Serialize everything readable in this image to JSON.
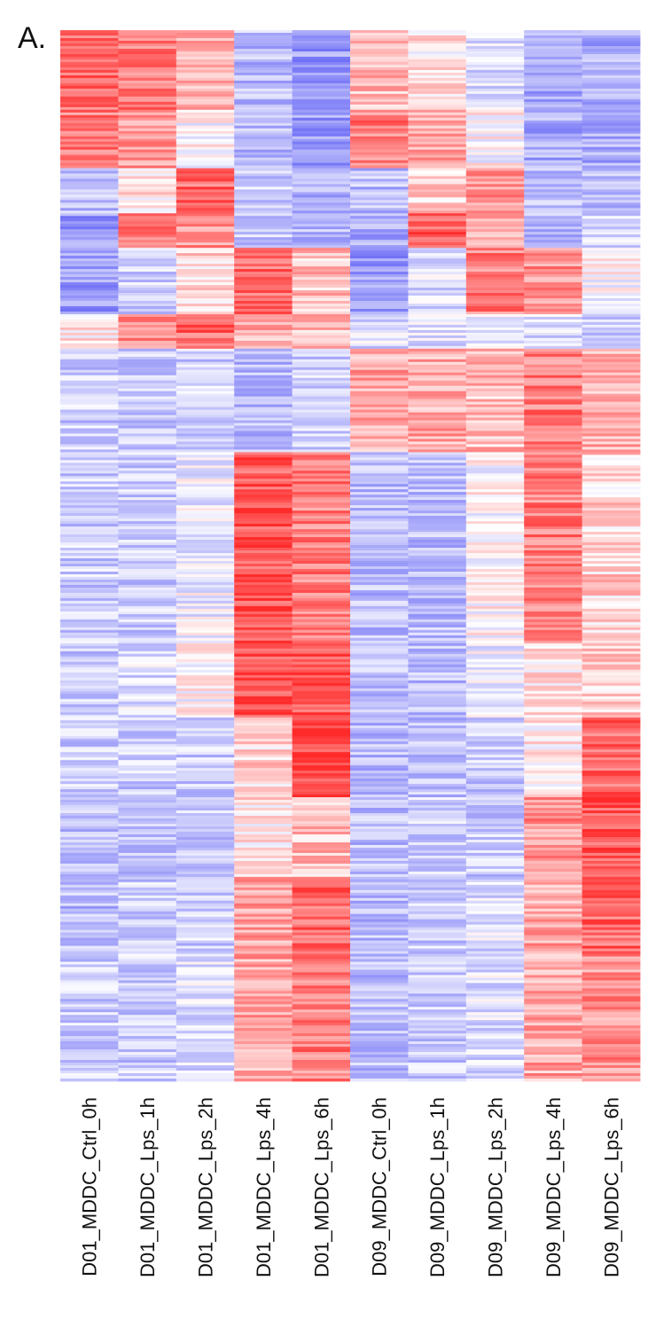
{
  "panel_label": "A.",
  "chart_data": {
    "type": "heatmap",
    "title": "",
    "xlabel": "",
    "ylabel": "",
    "columns": [
      "D01_MDDC_Ctrl_0h",
      "D01_MDDC_Lps_1h",
      "D01_MDDC_Lps_2h",
      "D01_MDDC_Lps_4h",
      "D01_MDDC_Lps_6h",
      "D09_MDDC_Ctrl_0h",
      "D09_MDDC_Lps_1h",
      "D09_MDDC_Lps_2h",
      "D09_MDDC_Lps_4h",
      "D09_MDDC_Lps_6h"
    ],
    "color_scale": {
      "low": "#5b5bf5",
      "mid": "#ffffff",
      "high": "#ff2a2a",
      "range": [
        -1,
        1
      ]
    },
    "row_blocks": [
      {
        "rows": 30,
        "values": [
          0.7,
          0.6,
          0.4,
          -0.4,
          -0.6,
          0.3,
          0.1,
          -0.2,
          -0.5,
          -0.5
        ]
      },
      {
        "rows": 22,
        "values": [
          0.6,
          0.5,
          0.0,
          -0.4,
          -0.6,
          0.6,
          0.4,
          0.0,
          -0.5,
          -0.5
        ]
      },
      {
        "rows": 17,
        "values": [
          -0.4,
          0.1,
          0.7,
          -0.3,
          -0.5,
          -0.4,
          0.2,
          0.5,
          -0.4,
          -0.4
        ]
      },
      {
        "rows": 13,
        "values": [
          -0.6,
          0.6,
          0.5,
          -0.3,
          -0.4,
          -0.5,
          0.8,
          0.4,
          -0.4,
          -0.2
        ]
      },
      {
        "rows": 25,
        "values": [
          -0.6,
          -0.3,
          0.2,
          0.7,
          0.3,
          -0.6,
          -0.2,
          0.6,
          0.5,
          0.0
        ]
      },
      {
        "rows": 13,
        "values": [
          0.1,
          0.6,
          0.7,
          0.4,
          0.3,
          -0.2,
          -0.2,
          -0.2,
          -0.2,
          -0.3
        ]
      },
      {
        "rows": 39,
        "values": [
          -0.3,
          -0.3,
          -0.3,
          -0.4,
          -0.3,
          0.4,
          0.4,
          0.3,
          0.6,
          0.4
        ]
      },
      {
        "rows": 72,
        "values": [
          -0.3,
          -0.3,
          -0.1,
          0.8,
          0.6,
          -0.4,
          -0.4,
          0.0,
          0.6,
          0.2
        ]
      },
      {
        "rows": 28,
        "values": [
          -0.3,
          -0.2,
          0.0,
          0.8,
          0.8,
          -0.4,
          -0.4,
          -0.1,
          0.1,
          0.2
        ]
      },
      {
        "rows": 30,
        "values": [
          -0.3,
          -0.3,
          -0.3,
          0.2,
          0.9,
          -0.4,
          -0.4,
          -0.3,
          0.1,
          0.7
        ]
      },
      {
        "rows": 30,
        "values": [
          -0.4,
          -0.4,
          -0.3,
          0.1,
          0.3,
          -0.4,
          -0.3,
          -0.3,
          0.5,
          0.8
        ]
      },
      {
        "rows": 30,
        "values": [
          -0.4,
          -0.3,
          -0.3,
          0.4,
          0.7,
          -0.4,
          -0.3,
          -0.2,
          0.4,
          0.7
        ]
      },
      {
        "rows": 47,
        "values": [
          -0.3,
          -0.3,
          -0.2,
          0.4,
          0.6,
          -0.4,
          -0.3,
          -0.2,
          0.4,
          0.5
        ]
      }
    ]
  }
}
